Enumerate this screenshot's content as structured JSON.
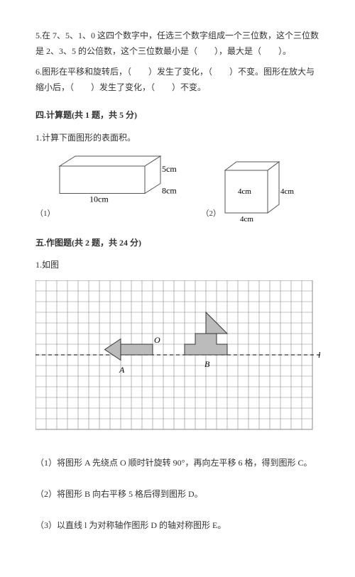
{
  "q5": {
    "text": "5.在 7、5、1、0 这四个数字中，任选三个数字组成一个三位数，这个三位数是 2、3、5 的公倍数，这个三位数最小是（　　），最大是（　　）。"
  },
  "q6": {
    "text": "6.图形在平移和旋转后，（　　）发生了变化，（　　）不变。图形在放大与缩小后，（　　）发生了变化，（　　）不变。"
  },
  "section4": {
    "title": "四.计算题(共 1 题，共 5 分)",
    "q1": "1.计算下面图形的表面积。",
    "fig1": {
      "label": "（1）",
      "w": 120,
      "h": 70,
      "dim_w": "10cm",
      "dim_h": "5cm",
      "dim_d": "8cm",
      "stroke": "#555",
      "fill": "#fff"
    },
    "fig2": {
      "label": "（2）",
      "s": 60,
      "dim": "4cm",
      "stroke": "#555",
      "fill": "#fff"
    }
  },
  "section5": {
    "title": "五.作图题(共 2 题，共 24 分)",
    "q1": "1.如图",
    "grid": {
      "cols": 26,
      "rows": 14,
      "cell": 15,
      "grid_color": "#888",
      "bg": "#fff",
      "dash_color": "#333",
      "axis_row": 7,
      "label_O": "O",
      "label_A": "A",
      "label_B": "B",
      "label_l": "l",
      "shapeA": {
        "fill": "#bbb",
        "stroke": "#333",
        "poly": [
          [
            8,
            6
          ],
          [
            11,
            6
          ],
          [
            11,
            5
          ],
          [
            11,
            8
          ],
          [
            11,
            7
          ],
          [
            8,
            7
          ]
        ],
        "tri": [
          [
            8,
            5.5
          ],
          [
            6.5,
            6.5
          ],
          [
            8,
            7.5
          ]
        ],
        "O": [
          11,
          6
        ],
        "A": [
          8,
          8
        ]
      },
      "shapeB": {
        "fill": "#bbb",
        "stroke": "#333",
        "hull": [
          [
            14,
            7
          ],
          [
            18,
            7
          ],
          [
            18,
            6
          ],
          [
            17,
            6
          ],
          [
            17,
            5
          ],
          [
            15,
            5
          ],
          [
            15,
            6
          ],
          [
            14,
            6
          ]
        ],
        "sail_tri": [
          [
            16,
            5
          ],
          [
            16,
            3
          ],
          [
            18,
            5
          ]
        ],
        "mast": [
          [
            16,
            5
          ],
          [
            16,
            3
          ]
        ],
        "B": [
          16,
          8
        ]
      }
    },
    "sub1": "（1）将图形 A 先绕点 O 顺时针旋转 90°，再向左平移 6 格，得到图形 C。",
    "sub2": "（2）将图形 B 向右平移 5 格后得到图形 D。",
    "sub3": "（3）以直线 l 为对称轴作图形 D 的轴对称图形 E。"
  }
}
